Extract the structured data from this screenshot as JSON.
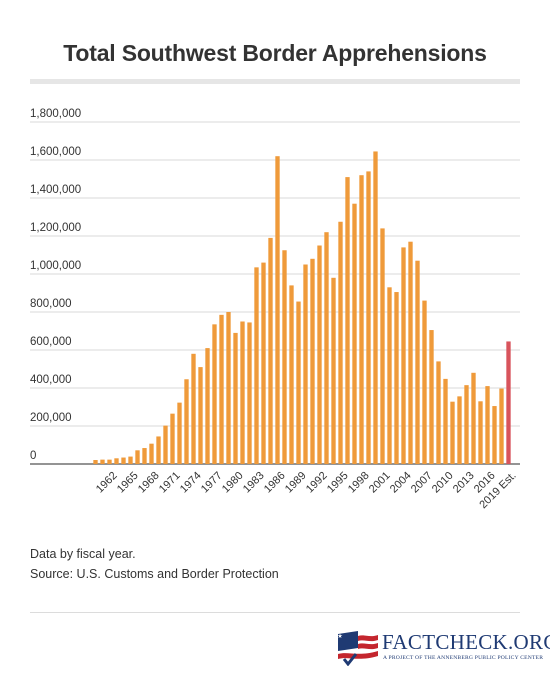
{
  "title": "Total Southwest Border Apprehensions",
  "notes": {
    "line1": "Data by fiscal year.",
    "line2": "Source: U.S. Customs and Border Protection"
  },
  "logo": {
    "text": "FactCheck.org",
    "display_text": "FACTCHECK.ORG",
    "subtitle": "A PROJECT OF THE ANNENBERG PUBLIC POLICY CENTER",
    "colors": {
      "blue": "#1f3a73",
      "red": "#c4262e"
    }
  },
  "colors": {
    "bar": "#ef9a3a",
    "highlight": "#d8545c",
    "grid": "#d9d9d9",
    "axis": "#555555"
  },
  "chart_data": {
    "type": "bar",
    "title": "Total Southwest Border Apprehensions",
    "xlabel": "",
    "ylabel": "",
    "ylim": [
      0,
      1800000
    ],
    "grid": true,
    "yticks": [
      0,
      200000,
      400000,
      600000,
      800000,
      1000000,
      1200000,
      1400000,
      1600000,
      1800000
    ],
    "ytick_labels": [
      "0",
      "200,000",
      "400,000",
      "600,000",
      "800,000",
      "1,000,000",
      "1,200,000",
      "1,400,000",
      "1,600,000",
      "1,800,000"
    ],
    "xtick_labels": [
      "1962",
      "1965",
      "1968",
      "1971",
      "1974",
      "1977",
      "1980",
      "1983",
      "1986",
      "1989",
      "1992",
      "1995",
      "1998",
      "2001",
      "2004",
      "2007",
      "2010",
      "2013",
      "2016",
      "2019 Est."
    ],
    "categories": [
      "1960",
      "1961",
      "1962",
      "1963",
      "1964",
      "1965",
      "1966",
      "1967",
      "1968",
      "1969",
      "1970",
      "1971",
      "1972",
      "1973",
      "1974",
      "1975",
      "1976",
      "1977",
      "1978",
      "1979",
      "1980",
      "1981",
      "1982",
      "1983",
      "1984",
      "1985",
      "1986",
      "1987",
      "1988",
      "1989",
      "1990",
      "1991",
      "1992",
      "1993",
      "1994",
      "1995",
      "1996",
      "1997",
      "1998",
      "1999",
      "2000",
      "2001",
      "2002",
      "2003",
      "2004",
      "2005",
      "2006",
      "2007",
      "2008",
      "2009",
      "2010",
      "2011",
      "2012",
      "2013",
      "2014",
      "2015",
      "2016",
      "2017",
      "2018",
      "2019 Est."
    ],
    "values": [
      21000,
      23000,
      23000,
      30000,
      34000,
      39000,
      72000,
      84000,
      107000,
      145000,
      202000,
      265000,
      323000,
      446000,
      580000,
      510000,
      610000,
      735000,
      785000,
      800000,
      690000,
      750000,
      745000,
      1035000,
      1060000,
      1190000,
      1620000,
      1125000,
      940000,
      855000,
      1050000,
      1080000,
      1150000,
      1220000,
      980000,
      1275000,
      1510000,
      1370000,
      1520000,
      1540000,
      1645000,
      1240000,
      930000,
      905000,
      1140000,
      1170000,
      1070000,
      860000,
      705000,
      540000,
      448000,
      328000,
      356000,
      415000,
      480000,
      330000,
      410000,
      305000,
      397000,
      645000
    ],
    "highlight_category": "2019 Est."
  }
}
